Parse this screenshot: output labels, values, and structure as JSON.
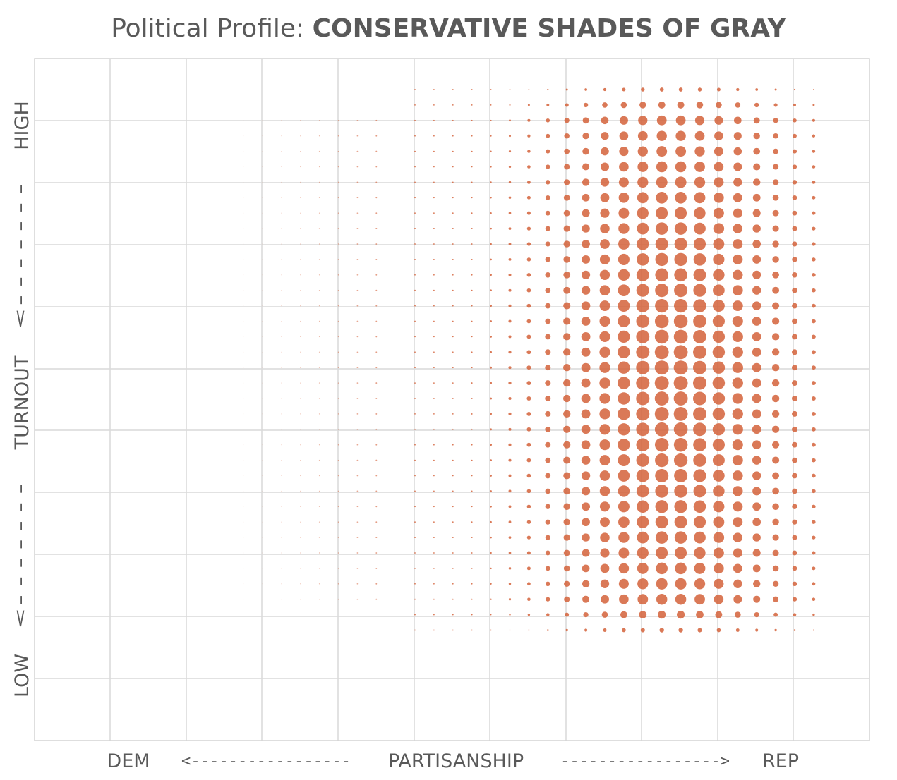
{
  "chart_data": {
    "type": "scatter",
    "title_prefix": "Political Profile: ",
    "title_bold": "CONSERVATIVE SHADES OF GRAY",
    "x_axis": {
      "left_label": "DEM",
      "left_arrow": "<-----------------",
      "center_label": "PARTISANSHIP",
      "right_arrow": "----------------->",
      "right_label": "REP"
    },
    "y_axis": {
      "high_label": "HIGH",
      "high_arrow": "<-------",
      "center_label": "TURNOUT",
      "low_arrow": "<-------",
      "low_label": "LOW"
    },
    "grid": true,
    "dot_color": "#D4623A",
    "grid_color": "#D9D9D9",
    "x_columns": 22,
    "y_rows": 36,
    "partisanship_center_column": 13.5,
    "partisanship_spread": 3.4,
    "turnout_center_row": 19,
    "turnout_spread": 14,
    "max_dot_radius": 10
  }
}
